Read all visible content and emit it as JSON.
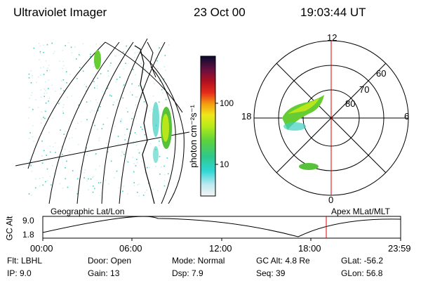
{
  "header": {
    "title": "Ultraviolet Imager",
    "date": "23 Oct 00",
    "time": "19:03:44 UT"
  },
  "colorbar": {
    "label": "photon cm⁻²s⁻¹",
    "ticks": [
      "100",
      "10"
    ]
  },
  "polar": {
    "mlt_labels": {
      "top": "12",
      "left": "18",
      "right": "6",
      "bottom": "0"
    },
    "lat_labels": [
      "60",
      "70",
      "80"
    ]
  },
  "timeline": {
    "left_title": "Geographic Lat/Lon",
    "right_title": "Apex MLat/MLT",
    "axis_label": "GC Alt",
    "y_ticks": [
      "9.0",
      "1.8"
    ],
    "x_ticks": [
      "00:00",
      "06:00",
      "12:00",
      "18:00",
      "23:59"
    ]
  },
  "footer": {
    "row1": [
      "Flt: LBHL",
      "Door: Open",
      "Mode: Normal",
      "GC Alt: 4.8 Re",
      "GLat: -56.2"
    ],
    "row2": [
      "IP:  9.0",
      "Gain: 13",
      "Dsp:     7.9",
      "Seq: 39",
      "GLon:  56.8"
    ]
  }
}
